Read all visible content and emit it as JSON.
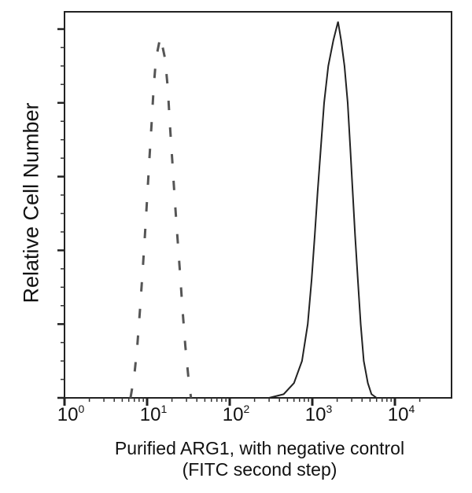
{
  "chart_data": {
    "type": "line",
    "title": "",
    "xlabel": "Purified ARG1, with negative control",
    "xlabel_line2": "(FITC second step)",
    "ylabel": "Relative Cell Number",
    "xscale": "log",
    "xlim": [
      1,
      25000
    ],
    "ylim": [
      0,
      105
    ],
    "x_ticks": [
      {
        "base": "10",
        "exp": "0",
        "value": 1
      },
      {
        "base": "10",
        "exp": "1",
        "value": 10
      },
      {
        "base": "10",
        "exp": "2",
        "value": 100
      },
      {
        "base": "10",
        "exp": "3",
        "value": 1000
      },
      {
        "base": "10",
        "exp": "4",
        "value": 10000
      }
    ],
    "y_major_ticks": [
      0,
      20,
      40,
      60,
      80,
      100
    ],
    "y_tick_labels_shown": false,
    "grid": false,
    "legend": null,
    "series": [
      {
        "name": "Negative control",
        "style": "dashed",
        "color": "#555555",
        "points": [
          [
            6.3,
            0
          ],
          [
            7.0,
            6
          ],
          [
            7.6,
            14
          ],
          [
            8.2,
            24
          ],
          [
            8.8,
            34
          ],
          [
            9.4,
            44
          ],
          [
            10.0,
            54
          ],
          [
            10.6,
            64
          ],
          [
            11.3,
            74
          ],
          [
            12.0,
            84
          ],
          [
            12.8,
            92
          ],
          [
            14.5,
            98
          ],
          [
            16.5,
            92
          ],
          [
            17.8,
            84
          ],
          [
            18.9,
            74
          ],
          [
            20.2,
            64
          ],
          [
            21.6,
            54
          ],
          [
            23.2,
            44
          ],
          [
            25.0,
            34
          ],
          [
            26.8,
            24
          ],
          [
            29.0,
            14
          ],
          [
            31.5,
            6
          ],
          [
            34.0,
            0
          ]
        ]
      },
      {
        "name": "Purified ARG1",
        "style": "solid",
        "color": "#222222",
        "points": [
          [
            300,
            0
          ],
          [
            450,
            1
          ],
          [
            600,
            4
          ],
          [
            750,
            10
          ],
          [
            880,
            20
          ],
          [
            980,
            32
          ],
          [
            1070,
            44
          ],
          [
            1160,
            56
          ],
          [
            1270,
            68
          ],
          [
            1390,
            80
          ],
          [
            1560,
            90
          ],
          [
            1800,
            97
          ],
          [
            2050,
            102
          ],
          [
            2230,
            97
          ],
          [
            2450,
            90
          ],
          [
            2680,
            80
          ],
          [
            2880,
            68
          ],
          [
            3080,
            56
          ],
          [
            3300,
            44
          ],
          [
            3560,
            32
          ],
          [
            3850,
            20
          ],
          [
            4200,
            10
          ],
          [
            4700,
            4
          ],
          [
            5200,
            1
          ],
          [
            6000,
            0
          ]
        ]
      }
    ]
  }
}
